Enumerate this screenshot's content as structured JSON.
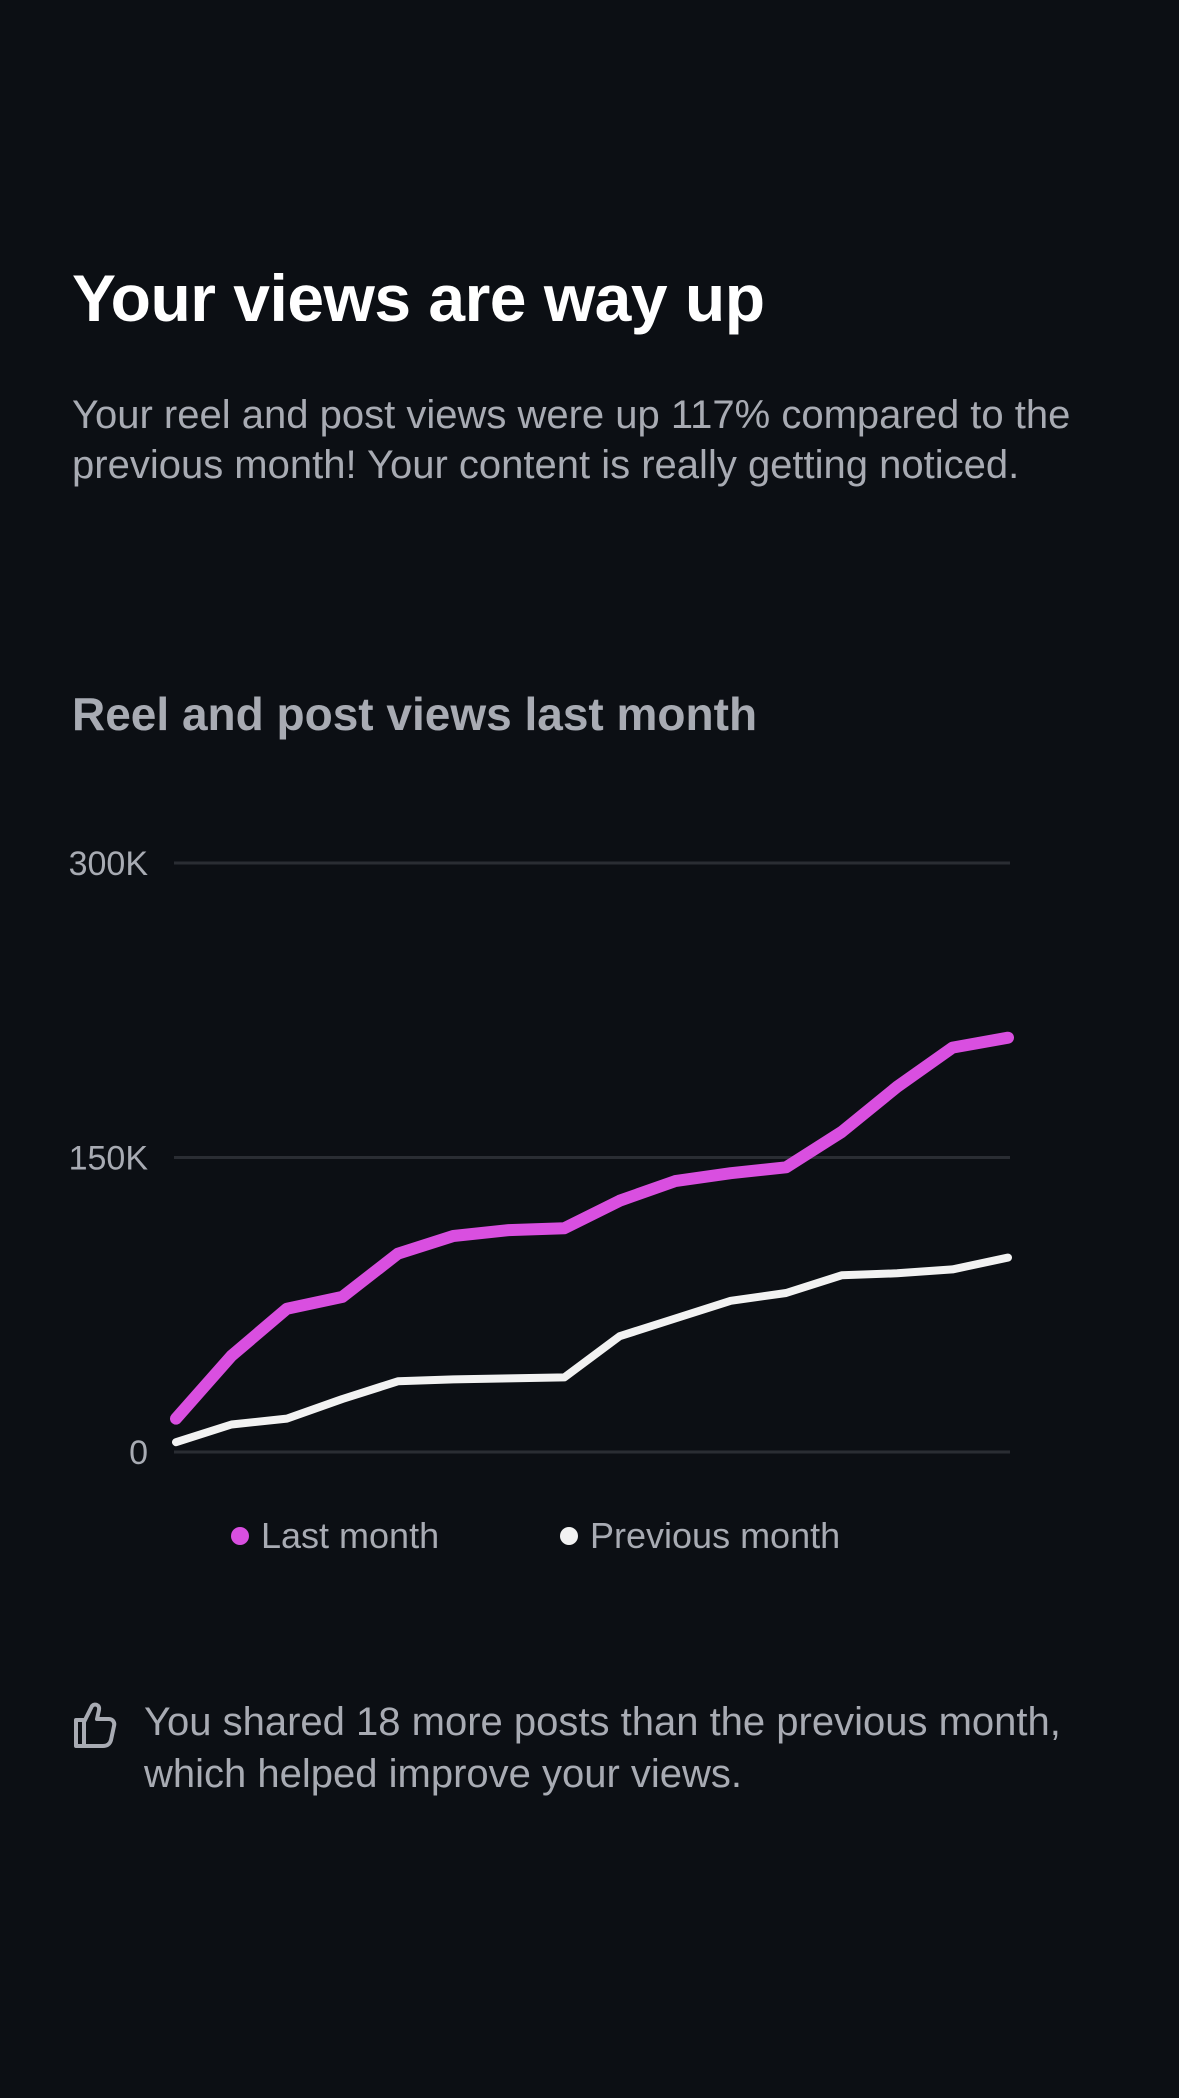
{
  "headline": "Your views are way up",
  "description": "Your reel and post views were up 117% compared to the previous month! Your content is really getting noticed.",
  "chart_data": {
    "type": "line",
    "title": "Reel and post views last month",
    "xlabel": "",
    "ylabel": "",
    "ylim": [
      0,
      300000
    ],
    "y_ticks": [
      {
        "value": 0,
        "label": "0"
      },
      {
        "value": 150000,
        "label": "150K"
      },
      {
        "value": 300000,
        "label": "300K"
      }
    ],
    "grid": true,
    "x": [
      1,
      2,
      3,
      4,
      5,
      6,
      7,
      8,
      9,
      10,
      11,
      12,
      13,
      14,
      15,
      16
    ],
    "series": [
      {
        "name": "Last month",
        "color": "#d94fe0",
        "values": [
          17000,
          49000,
          73000,
          79000,
          101000,
          110000,
          113000,
          114000,
          128000,
          138000,
          142000,
          145000,
          163000,
          186000,
          206000,
          211000
        ]
      },
      {
        "name": "Previous month",
        "color": "#f2f2f2",
        "values": [
          5000,
          14000,
          17000,
          27000,
          36000,
          37000,
          37500,
          38000,
          59000,
          68000,
          77000,
          81000,
          90000,
          91000,
          93000,
          99000
        ]
      }
    ],
    "legend_position": "bottom"
  },
  "insight": {
    "icon": "thumbs-up-icon",
    "text": "You shared 18 more posts than the previous month, which helped improve your views."
  },
  "colors": {
    "background": "#0c0f14",
    "gridline": "#2a2d33",
    "muted_text": "#a8abb3"
  }
}
